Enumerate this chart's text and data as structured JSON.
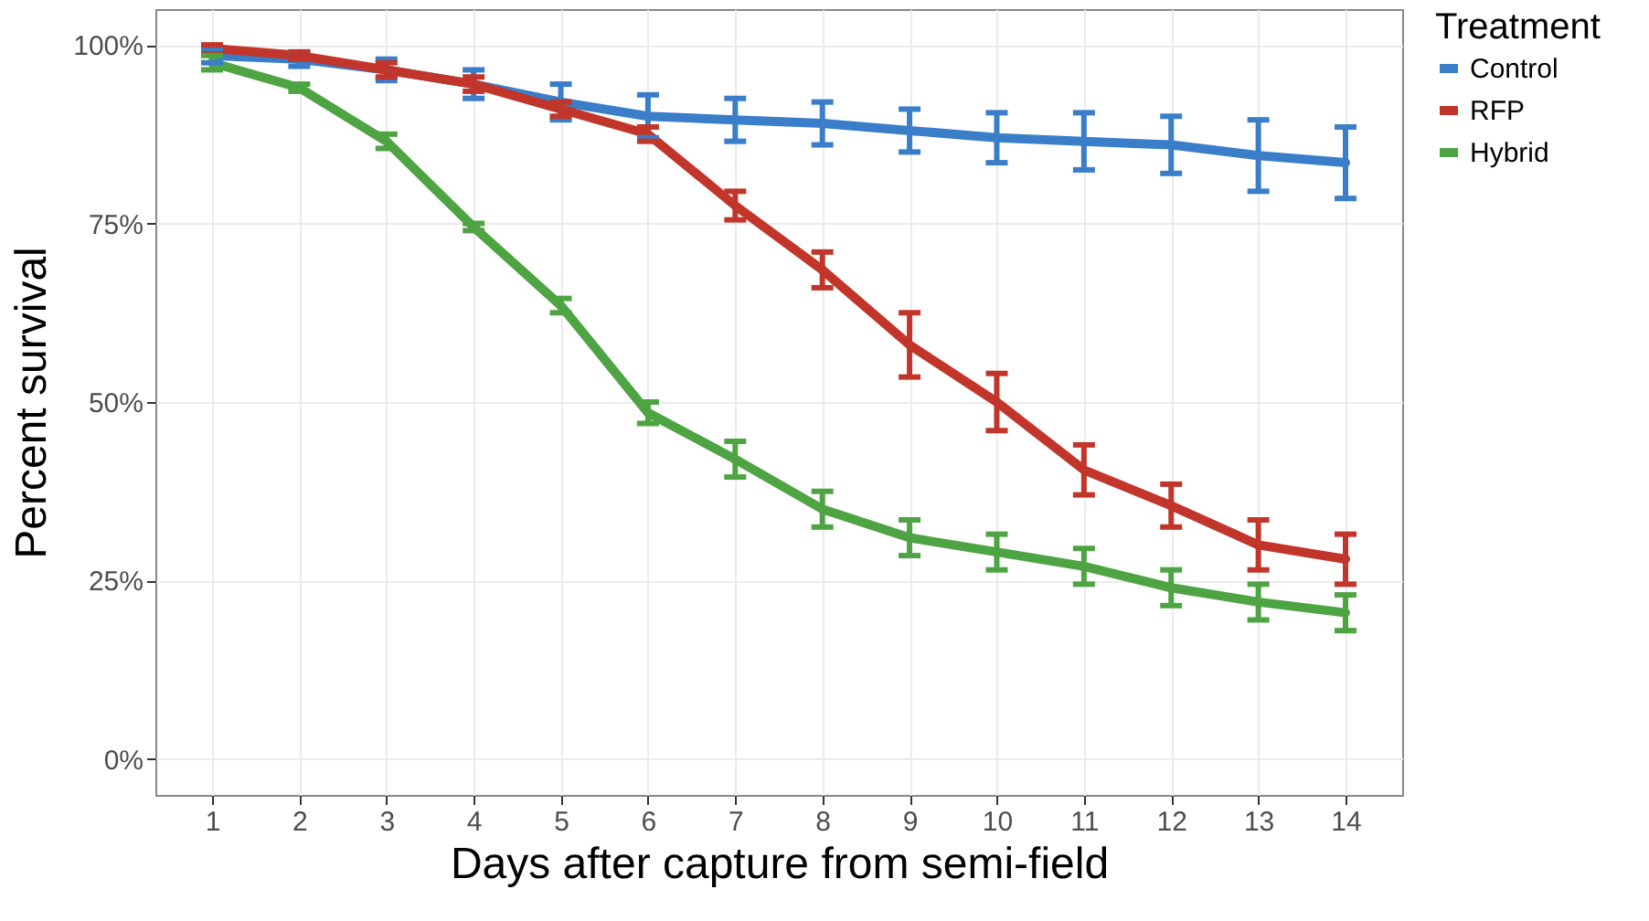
{
  "chart_data": {
    "type": "line",
    "xlabel": "Days after capture from semi-field",
    "ylabel": "Percent survival",
    "legend_title": "Treatment",
    "x": [
      1,
      2,
      3,
      4,
      5,
      6,
      7,
      8,
      9,
      10,
      11,
      12,
      13,
      14
    ],
    "series": [
      {
        "name": "Control",
        "color": "#3a7dc9",
        "values": [
          98.5,
          98,
          96.5,
          94.5,
          92,
          90,
          89.5,
          89,
          88,
          87,
          86.5,
          86,
          84.5,
          83.5
        ],
        "errors": [
          1,
          1,
          1.5,
          2,
          2.5,
          3,
          3,
          3,
          3,
          3.5,
          4,
          4,
          5,
          5
        ]
      },
      {
        "name": "RFP",
        "color": "#c2352a",
        "values": [
          99.5,
          98.5,
          96.5,
          94.5,
          91,
          87.5,
          77.5,
          68.5,
          58,
          50,
          40.5,
          35.5,
          30,
          28
        ],
        "errors": [
          0.5,
          0.5,
          1,
          1,
          1,
          1,
          2,
          2.5,
          4.5,
          4,
          3.5,
          3,
          3.5,
          3.5
        ]
      },
      {
        "name": "Hybrid",
        "color": "#4ea443",
        "values": [
          97.5,
          94,
          86.5,
          74.5,
          63.5,
          48.5,
          42,
          35,
          31,
          29,
          27,
          24,
          22,
          20.5
        ],
        "errors": [
          1,
          0.5,
          1,
          0.5,
          1,
          1.5,
          2.5,
          2.5,
          2.5,
          2.5,
          2.5,
          2.5,
          2.5,
          2.5
        ]
      }
    ],
    "xlim": [
      0.35,
      14.65
    ],
    "xticks": [
      1,
      2,
      3,
      4,
      5,
      6,
      7,
      8,
      9,
      10,
      11,
      12,
      13,
      14
    ],
    "ylim": [
      -5,
      105
    ],
    "yticks": [
      {
        "value": 0,
        "label": "0%"
      },
      {
        "value": 25,
        "label": "25%"
      },
      {
        "value": 50,
        "label": "50%"
      },
      {
        "value": 75,
        "label": "75%"
      },
      {
        "value": 100,
        "label": "100%"
      }
    ],
    "grid": true,
    "legend": "right",
    "marker": "none",
    "line_style": "solid"
  }
}
